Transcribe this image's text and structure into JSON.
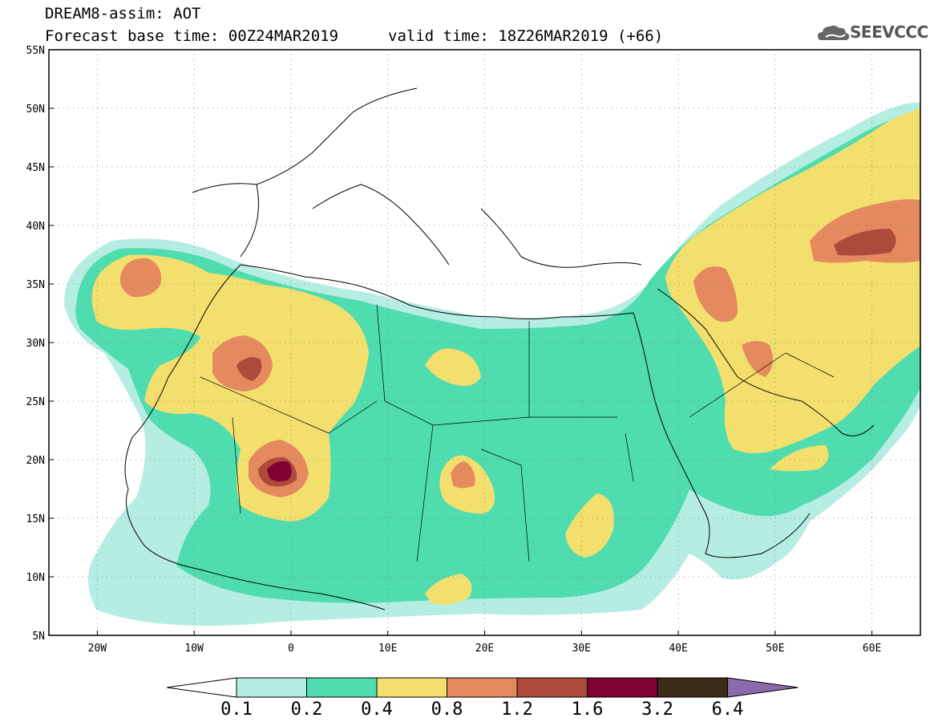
{
  "header": {
    "model_title": "DREAM8-assim: AOT",
    "base_time": "Forecast base time: 00Z24MAR2019",
    "valid_time": "valid time: 18Z26MAR2019 (+66)",
    "logo_text": "SEEVCCC"
  },
  "map": {
    "lon_range": [
      -25,
      65
    ],
    "lat_range": [
      5,
      55
    ],
    "lat_labels": [
      "55N",
      "50N",
      "45N",
      "40N",
      "35N",
      "30N",
      "25N",
      "20N",
      "15N",
      "10N",
      "5N"
    ],
    "lat_values": [
      55,
      50,
      45,
      40,
      35,
      30,
      25,
      20,
      15,
      10,
      5
    ],
    "lon_labels": [
      "20W",
      "10W",
      "0",
      "10E",
      "20E",
      "30E",
      "40E",
      "50E",
      "60E"
    ],
    "lon_values": [
      -20,
      -10,
      0,
      10,
      20,
      30,
      40,
      50,
      60
    ]
  },
  "colorbar": {
    "labels": [
      "0.1",
      "0.2",
      "0.4",
      "0.8",
      "1.2",
      "1.6",
      "3.2",
      "6.4"
    ],
    "colors": [
      "#b5ede3",
      "#4fdcae",
      "#f3df6e",
      "#e58a5e",
      "#ae4a3c",
      "#800030",
      "#3e2a18",
      "#8a6aaa"
    ],
    "under_color": "#ffffff",
    "over_color": "#8a6aaa"
  }
}
